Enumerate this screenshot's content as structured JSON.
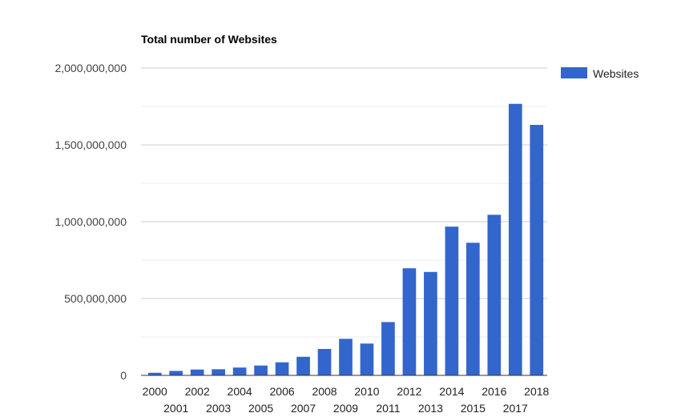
{
  "chart_data": {
    "type": "bar",
    "title": "Total number of Websites",
    "xlabel": "",
    "ylabel": "",
    "categories": [
      "2000",
      "2001",
      "2002",
      "2003",
      "2004",
      "2005",
      "2006",
      "2007",
      "2008",
      "2009",
      "2010",
      "2011",
      "2012",
      "2013",
      "2014",
      "2015",
      "2016",
      "2017",
      "2018"
    ],
    "series": [
      {
        "name": "Websites",
        "color": "#3366cc",
        "values": [
          17000000,
          29000000,
          38000000,
          40000000,
          51000000,
          64000000,
          85000000,
          121000000,
          172000000,
          238000000,
          207000000,
          347000000,
          697000000,
          673000000,
          968000000,
          863000000,
          1045000000,
          1767000000,
          1630000000
        ]
      }
    ],
    "ylim": [
      0,
      2000000000
    ],
    "yticks": [
      0,
      500000000,
      1000000000,
      1500000000,
      2000000000
    ],
    "ytick_labels": [
      "0",
      "500,000,000",
      "1,000,000,000",
      "1,500,000,000",
      "2,000,000,000"
    ],
    "grid": true,
    "legend_position": "right"
  }
}
